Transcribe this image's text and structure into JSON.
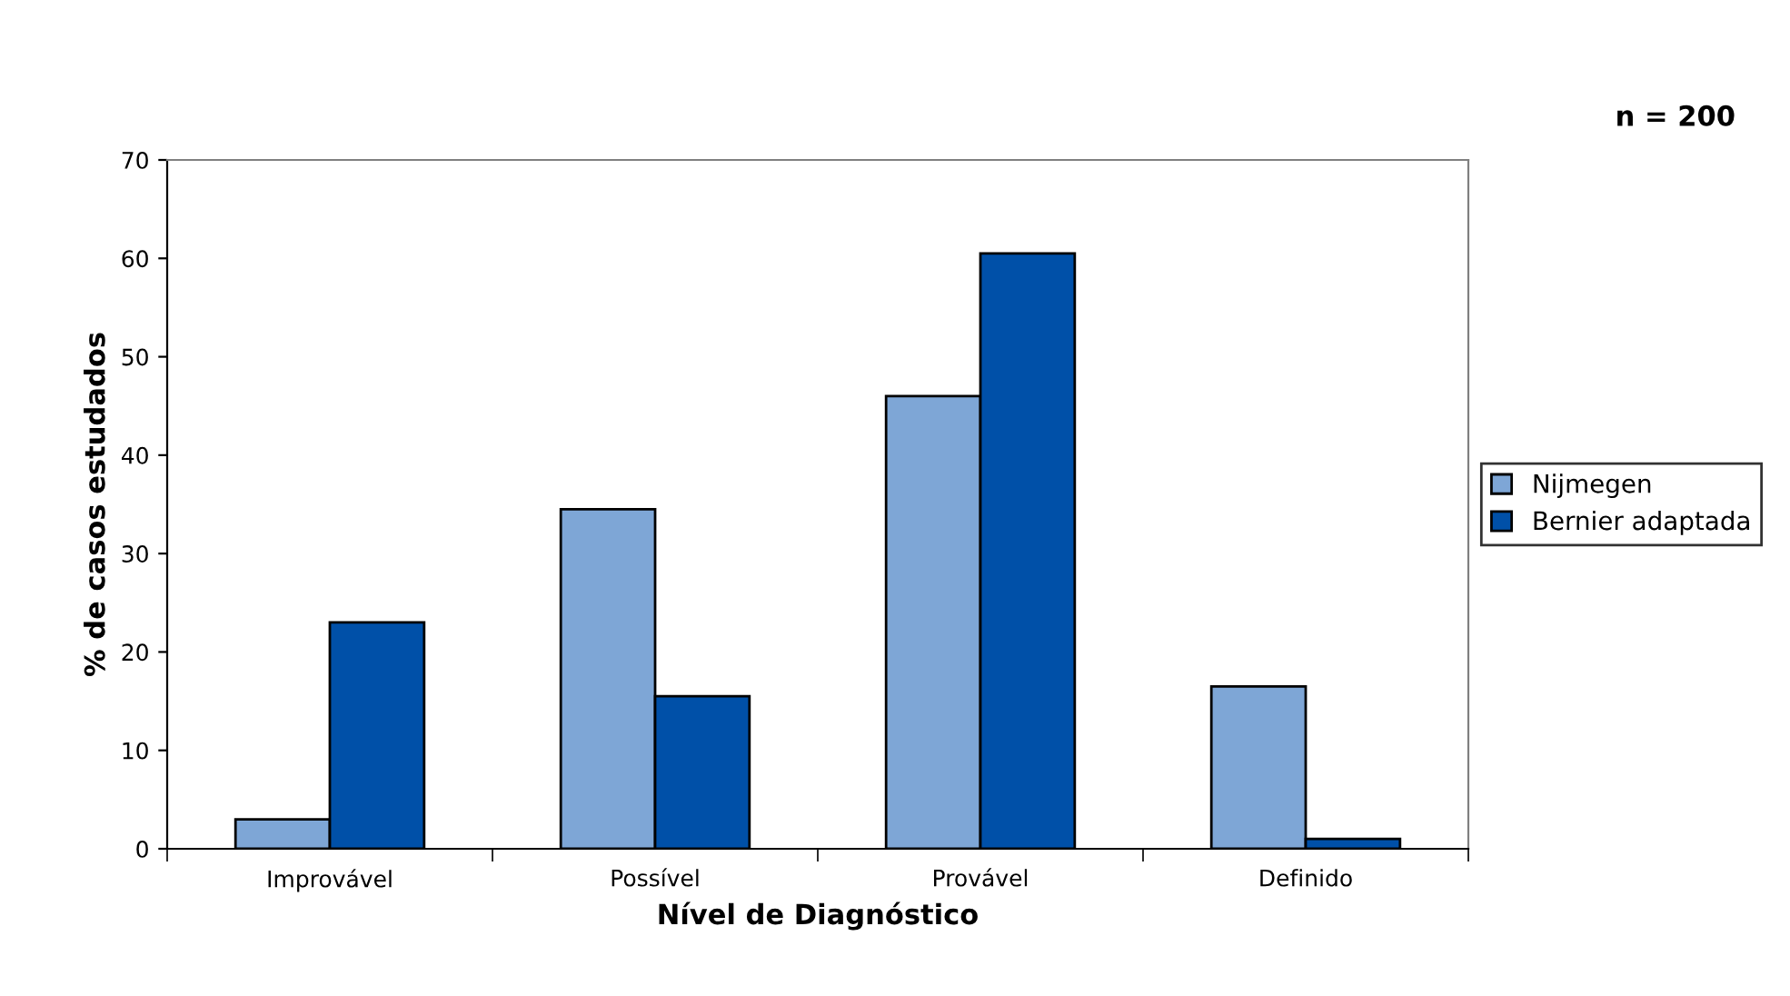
{
  "chart_data": {
    "type": "bar",
    "xlabel": "Nível de Diagnóstico",
    "ylabel": "% de casos estudados",
    "categories": [
      "Improvável",
      "Possível",
      "Provável",
      "Definido"
    ],
    "series": [
      {
        "name": "Nijmegen",
        "color": "#7ea6d6",
        "values": [
          3,
          34.5,
          46,
          16.5
        ]
      },
      {
        "name": "Bernier adaptada",
        "color": "#0050a8",
        "values": [
          23,
          15.5,
          60.5,
          1
        ]
      }
    ],
    "ylim": [
      0,
      70
    ],
    "yticks": [
      0,
      10,
      20,
      30,
      40,
      50,
      60,
      70
    ],
    "grid": false,
    "legend": "right",
    "annotations": [
      "n = 200"
    ]
  }
}
